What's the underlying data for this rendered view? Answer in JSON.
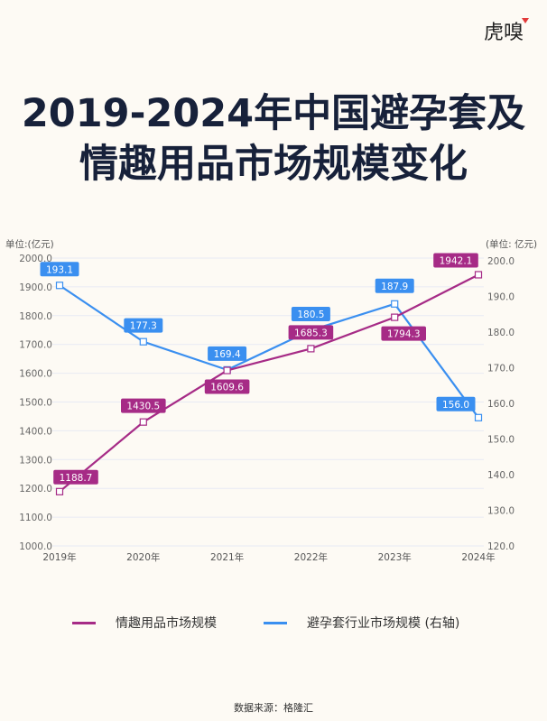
{
  "logo": "虎嗅",
  "title": {
    "line1": "2019-2024年中国避孕套及",
    "line2": "情趣用品市场规模变化"
  },
  "source": "数据来源：格隆汇",
  "colors": {
    "purple": "#a62b86",
    "blue": "#3a8ff0",
    "text": "#17213a"
  },
  "chart_data": {
    "type": "line",
    "categories": [
      "2019年",
      "2020年",
      "2021年",
      "2022年",
      "2023年",
      "2024年"
    ],
    "left_axis": {
      "label": "单位:(亿元)",
      "ylim": [
        1000,
        2000
      ],
      "ticks": [
        "1000.0",
        "1100.0",
        "1200.0",
        "1300.0",
        "1400.0",
        "1500.0",
        "1600.0",
        "1700.0",
        "1800.0",
        "1900.0",
        "2000.0"
      ]
    },
    "right_axis": {
      "label": "(单位: 亿元)",
      "ylim": [
        120,
        200
      ],
      "ticks": [
        "120.0",
        "130.0",
        "140.0",
        "150.0",
        "160.0",
        "170.0",
        "180.0",
        "190.0",
        "200.0"
      ]
    },
    "series": [
      {
        "name": "情趣用品市场规模",
        "axis": "left",
        "color": "#a62b86",
        "values": [
          1188.7,
          1430.5,
          1609.6,
          1685.3,
          1794.3,
          1942.1
        ],
        "labels": [
          "1188.7",
          "1430.5",
          "1609.6",
          "1685.3",
          "1794.3",
          "1942.1"
        ]
      },
      {
        "name": "避孕套行业市场规模 (右轴)",
        "axis": "right",
        "color": "#3a8ff0",
        "values": [
          193.1,
          177.3,
          169.4,
          180.5,
          187.9,
          156.0
        ],
        "labels": [
          "193.1",
          "177.3",
          "169.4",
          "180.5",
          "187.9",
          "156.0"
        ]
      }
    ],
    "grid": true,
    "legend": "bottom"
  }
}
